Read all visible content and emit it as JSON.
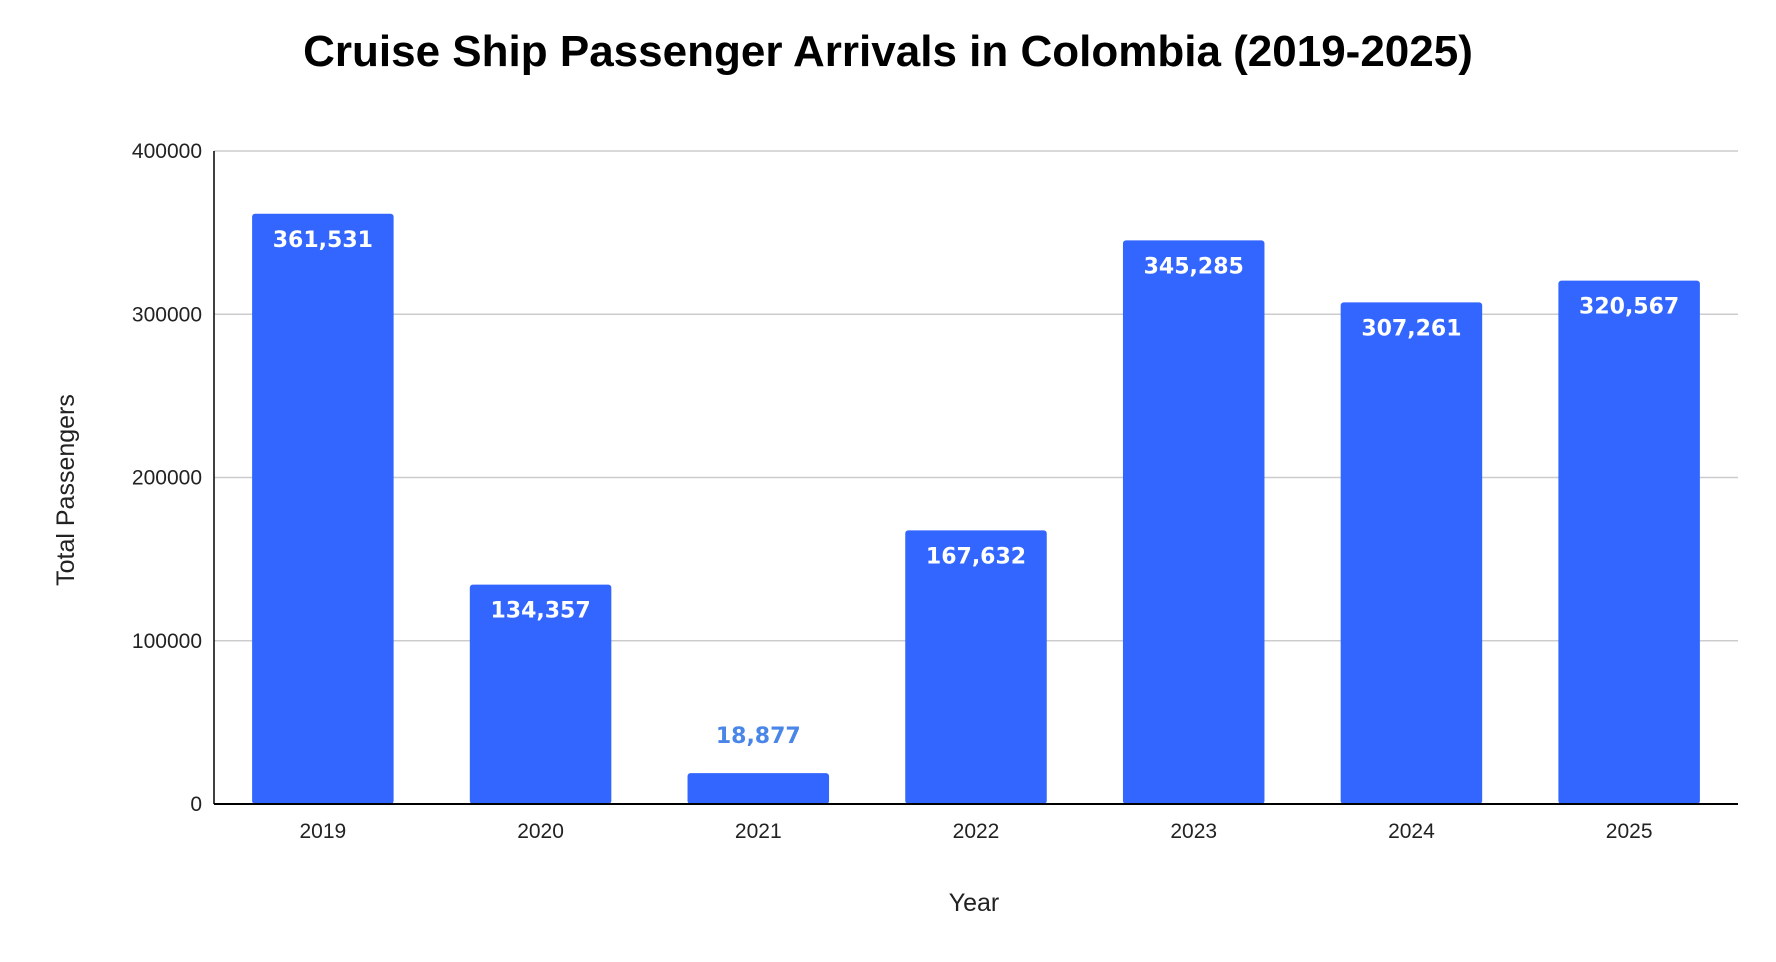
{
  "chart_data": {
    "type": "bar",
    "title": "Cruise Ship Passenger Arrivals in Colombia (2019-2025)",
    "xlabel": "Year",
    "ylabel": "Total Passengers",
    "categories": [
      "2019",
      "2020",
      "2021",
      "2022",
      "2023",
      "2024",
      "2025"
    ],
    "values": [
      361531,
      134357,
      18877,
      167632,
      345285,
      307261,
      320567
    ],
    "data_labels": [
      "361,531",
      "134,357",
      "18,877",
      "167,632",
      "345,285",
      "307,261",
      "320,567"
    ],
    "ylim": [
      0,
      400000
    ],
    "yticks": [
      0,
      100000,
      200000,
      300000,
      400000
    ],
    "ytick_labels": [
      "0",
      "100000",
      "200000",
      "300000",
      "400000"
    ],
    "grid": true,
    "legend": "none",
    "colors": {
      "bar": "#3366ff",
      "label_inside": "#ffffff",
      "label_outside": "#4a86e8",
      "grid": "#cccccc",
      "axis": "#000000"
    }
  }
}
